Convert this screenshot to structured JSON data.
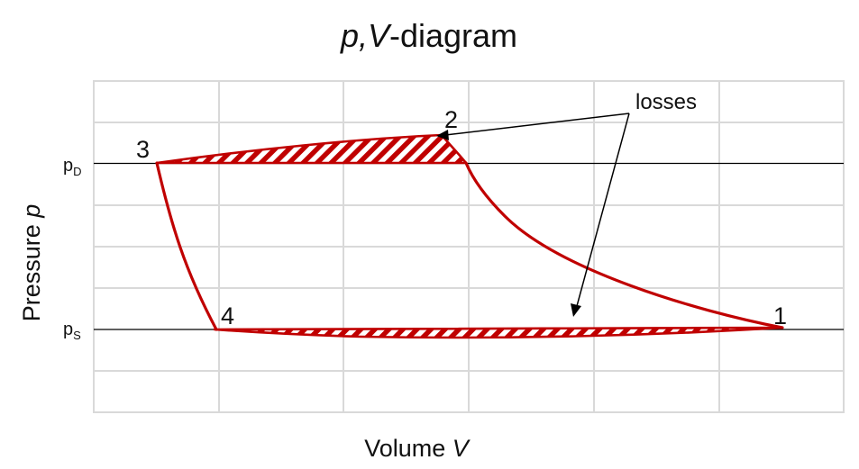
{
  "title": {
    "main": "p,V",
    "rest": "-diagram"
  },
  "axes": {
    "x": {
      "text": "Volume ",
      "symbol": "V"
    },
    "y": {
      "text": "Pressure ",
      "symbol": "p"
    }
  },
  "levels": {
    "upper": {
      "base": "p",
      "sub": "D"
    },
    "lower": {
      "base": "p",
      "sub": "S"
    }
  },
  "points": [
    "1",
    "2",
    "3",
    "4"
  ],
  "annotation": "losses",
  "colors": {
    "cycle": "#c00000",
    "grid": "#d9d9d9",
    "level_lines": "#000000",
    "text": "#111111"
  }
}
